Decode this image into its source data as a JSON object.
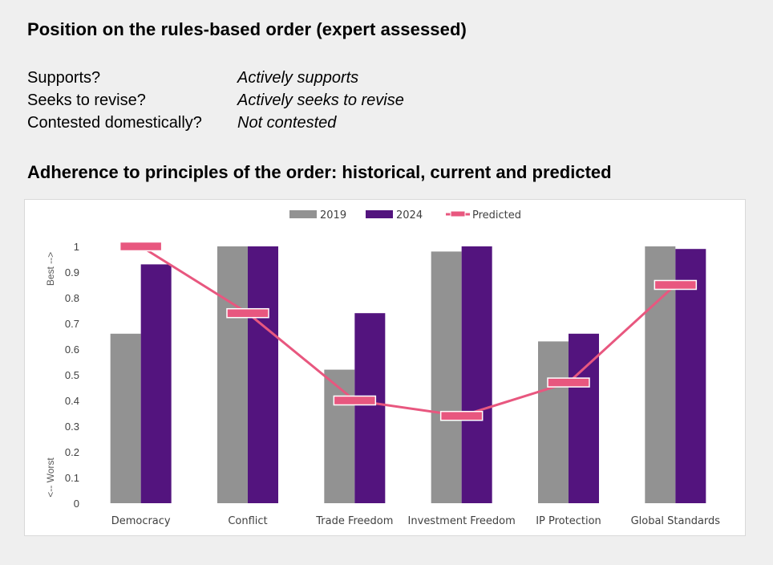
{
  "heading_position": "Position on the rules-based order (expert assessed)",
  "position": [
    {
      "label": "Supports?",
      "value": "Actively supports"
    },
    {
      "label": "Seeks to revise?",
      "value": "Actively seeks to revise"
    },
    {
      "label": "Contested domestically?",
      "value": "Not contested"
    }
  ],
  "heading_chart": "Adherence to principles of the order: historical, current and predicted",
  "chart_data": {
    "type": "bar",
    "categories": [
      "Democracy",
      "Conflict",
      "Trade Freedom",
      "Investment Freedom",
      "IP Protection",
      "Global Standards"
    ],
    "series": [
      {
        "name": "2019",
        "type": "bar",
        "color": "#929292",
        "values": [
          0.66,
          1.0,
          0.52,
          0.98,
          0.63,
          1.0
        ]
      },
      {
        "name": "2024",
        "type": "bar",
        "color": "#53147e",
        "values": [
          0.93,
          1.0,
          0.74,
          1.0,
          0.66,
          0.99
        ]
      },
      {
        "name": "Predicted",
        "type": "line",
        "color": "#e8577f",
        "values": [
          1.0,
          0.74,
          0.4,
          0.34,
          0.47,
          0.85
        ]
      }
    ],
    "ylim": [
      0,
      1
    ],
    "yticks": [
      "0",
      "0.1",
      "0.2",
      "0.3",
      "0.4",
      "0.5",
      "0.6",
      "0.7",
      "0.8",
      "0.9",
      "1"
    ],
    "ylabel_top": "Best -->",
    "ylabel_bottom": "<-- Worst",
    "legend_position": "top-center",
    "grid": false
  }
}
